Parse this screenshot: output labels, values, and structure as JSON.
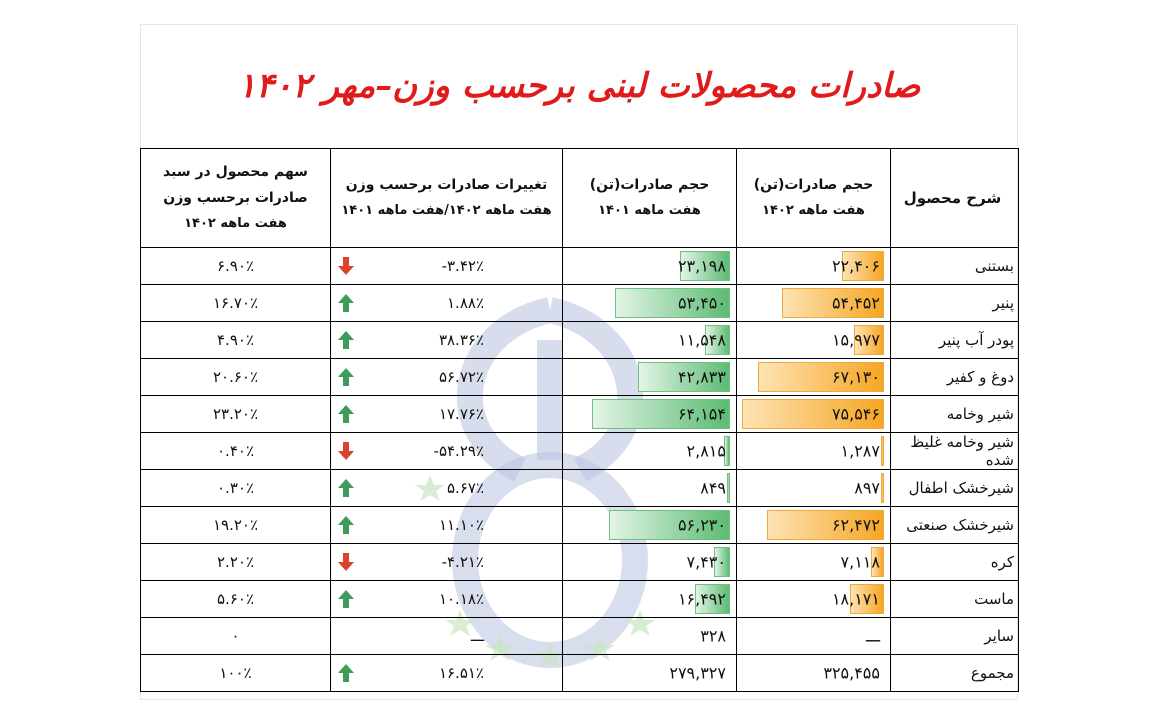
{
  "title": "صادرات محصولات لبنی برحسب  وزن–مهر ۱۴۰۲",
  "headers": {
    "name": "شرح محصول",
    "v1402_line1": "حجم صادرات(تن)",
    "v1402_line2": "هفت ماهه  ۱۴۰۲",
    "v1401_line1": "حجم صادرات(تن)",
    "v1401_line2": "هفت ماهه  ۱۴۰۱",
    "change_line1": "تغییرات صادرات برحسب وزن",
    "change_line2": "هفت ماهه ۱۴۰۲/هفت ماهه ۱۴۰۱",
    "share_line1": "سهم محصول در سبد",
    "share_line2": "صادرات برحسب وزن",
    "share_line3": "هفت ماهه  ۱۴۰۲"
  },
  "rows": [
    {
      "name": "بستنی",
      "v1402": "۲۲,۴۰۶",
      "v1401": "۲۳,۱۹۸",
      "change": "-۳.۴۲٪",
      "dir": "down",
      "share": "۶.۹۰٪",
      "bar1402": 22406,
      "bar1401": 23198
    },
    {
      "name": "پنیر",
      "v1402": "۵۴,۴۵۲",
      "v1401": "۵۳,۴۵۰",
      "change": "۱.۸۸٪",
      "dir": "up",
      "share": "۱۶.۷۰٪",
      "bar1402": 54452,
      "bar1401": 53450
    },
    {
      "name": "پودر آب پنیر",
      "v1402": "۱۵,۹۷۷",
      "v1401": "۱۱,۵۴۸",
      "change": "۳۸.۳۶٪",
      "dir": "up",
      "share": "۴.۹۰٪",
      "bar1402": 15977,
      "bar1401": 11548
    },
    {
      "name": "دوغ و کفیر",
      "v1402": "۶۷,۱۳۰",
      "v1401": "۴۲,۸۳۳",
      "change": "۵۶.۷۲٪",
      "dir": "up",
      "share": "۲۰.۶۰٪",
      "bar1402": 67130,
      "bar1401": 42833
    },
    {
      "name": "شیر وخامه",
      "v1402": "۷۵,۵۴۶",
      "v1401": "۶۴,۱۵۴",
      "change": "۱۷.۷۶٪",
      "dir": "up",
      "share": "۲۳.۲۰٪",
      "bar1402": 75546,
      "bar1401": 64154
    },
    {
      "name": "شیر وخامه غلیظ شده",
      "v1402": "۱,۲۸۷",
      "v1401": "۲,۸۱۵",
      "change": "-۵۴.۲۹٪",
      "dir": "down",
      "share": "۰.۴۰٪",
      "bar1402": 1287,
      "bar1401": 2815
    },
    {
      "name": "شیرخشک اطفال",
      "v1402": "۸۹۷",
      "v1401": "۸۴۹",
      "change": "۵.۶۷٪",
      "dir": "up",
      "share": "۰.۳۰٪",
      "bar1402": 897,
      "bar1401": 849
    },
    {
      "name": "شیرخشک صنعتی",
      "v1402": "۶۲,۴۷۲",
      "v1401": "۵۶,۲۳۰",
      "change": "۱۱.۱۰٪",
      "dir": "up",
      "share": "۱۹.۲۰٪",
      "bar1402": 62472,
      "bar1401": 56230
    },
    {
      "name": "کره",
      "v1402": "۷,۱۱۸",
      "v1401": "۷,۴۳۰",
      "change": "-۴.۲۱٪",
      "dir": "down",
      "share": "۲.۲۰٪",
      "bar1402": 7118,
      "bar1401": 7430
    },
    {
      "name": "ماست",
      "v1402": "۱۸,۱۷۱",
      "v1401": "۱۶,۴۹۲",
      "change": "۱۰.۱۸٪",
      "dir": "up",
      "share": "۵.۶۰٪",
      "bar1402": 18171,
      "bar1401": 16492
    },
    {
      "name": "سایر",
      "v1402": "ـــ",
      "v1401": "۳۲۸",
      "change": "ـــ",
      "dir": "",
      "share": "۰",
      "bar1402": 0,
      "bar1401": 0
    },
    {
      "name": "مجموع",
      "v1402": "۳۲۵,۴۵۵",
      "v1401": "۲۷۹,۳۲۷",
      "change": "۱۶.۵۱٪",
      "dir": "up",
      "share": "۱۰۰٪",
      "bar1402": 0,
      "bar1401": 0
    }
  ],
  "bar_max": 75546,
  "colors": {
    "title": "#e01b1b",
    "bar_orange": "#f6a623",
    "bar_green": "#5cbb73",
    "arrow_up": "#3f9b5a",
    "arrow_down": "#d9442c"
  }
}
